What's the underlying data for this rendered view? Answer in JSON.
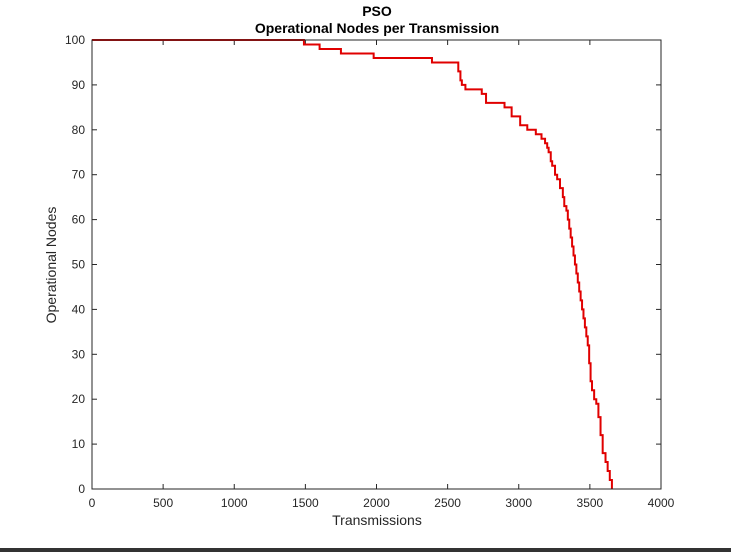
{
  "chart_data": {
    "type": "line",
    "title": "PSO",
    "subtitle": "Operational Nodes per Transmission",
    "xlabel": "Transmissions",
    "ylabel": "Operational Nodes",
    "xlim": [
      0,
      4000
    ],
    "ylim": [
      0,
      100
    ],
    "xticks": [
      0,
      500,
      1000,
      1500,
      2000,
      2500,
      3000,
      3500,
      4000
    ],
    "yticks": [
      0,
      10,
      20,
      30,
      40,
      50,
      60,
      70,
      80,
      90,
      100
    ],
    "grid": false,
    "line_color": "#e00000",
    "series": [
      {
        "step": true,
        "x": [
          0,
          1490,
          1600,
          1750,
          1980,
          2390,
          2575,
          2590,
          2600,
          2625,
          2740,
          2770,
          2900,
          2950,
          3010,
          3060,
          3120,
          3160,
          3185,
          3200,
          3210,
          3225,
          3235,
          3255,
          3270,
          3290,
          3310,
          3320,
          3335,
          3345,
          3355,
          3365,
          3375,
          3385,
          3395,
          3405,
          3415,
          3425,
          3435,
          3445,
          3455,
          3465,
          3475,
          3485,
          3495,
          3505,
          3515,
          3530,
          3545,
          3560,
          3575,
          3590,
          3610,
          3625,
          3640,
          3655
        ],
        "y": [
          100,
          99,
          98,
          97,
          96,
          95,
          93,
          91,
          90,
          89,
          88,
          86,
          85,
          83,
          81,
          80,
          79,
          78,
          77,
          76,
          75,
          73,
          72,
          70,
          69,
          67,
          65,
          63,
          62,
          60,
          58,
          56,
          54,
          52,
          50,
          48,
          46,
          44,
          42,
          40,
          38,
          36,
          34,
          32,
          28,
          24,
          22,
          20,
          19,
          16,
          12,
          8,
          6,
          4,
          2,
          0
        ]
      }
    ]
  }
}
